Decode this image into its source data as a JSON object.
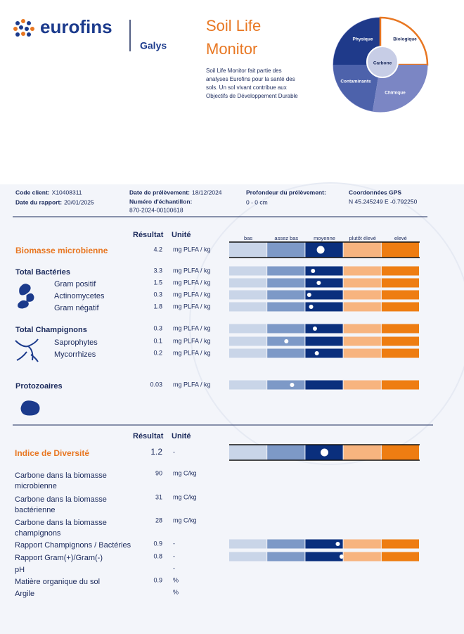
{
  "header": {
    "logo": "eurofins",
    "brand": "Galys",
    "title": [
      "Soil Life",
      "Monitor"
    ],
    "description": [
      "Soil Life Monitor fait partie des",
      "analyses Eurofins pour la santé des",
      "sols. Un sol vivant contribue aux",
      "Objectifs de Développement Durable"
    ],
    "puzzle": [
      "Physique",
      "Biologique",
      "Carbone",
      "Contaminants",
      "Chimique"
    ]
  },
  "info": [
    {
      "label": "Code client:",
      "value": "X10408311"
    },
    {
      "label": "Date du rapport:",
      "value": "20/01/2025"
    },
    {
      "label": "Date de prélèvement:",
      "value": "18/12/2024"
    },
    {
      "label": "Numéro d'échantillon:",
      "value": "870-2024-00100618"
    },
    {
      "label": "Profondeur du prélèvement:",
      "value": "0 - 0 cm"
    },
    {
      "label": "Coordonnées GPS",
      "value": "N 45.245249 E -0.792250"
    }
  ],
  "sections": [
    {
      "headers": [
        "Résultat",
        "Unité"
      ],
      "scale": [
        "bas",
        "assez bas",
        "moyenne",
        "plutôt élevé",
        "elevé"
      ],
      "rows": [
        {
          "name": [
            "Biomasse microbienne"
          ],
          "value": 4.2,
          "unit": "mg PLFA / kg",
          "gauge": 2.4
        },
        {
          "name": [
            "Total Bactéries"
          ],
          "value": 3.3,
          "unit": "mg PLFA / kg",
          "gauge": 2.2
        },
        {
          "name": [
            "Gram positif"
          ],
          "value": 1.5,
          "unit": "mg PLFA / kg",
          "gauge": 2.35
        },
        {
          "name": [
            "Actinomycetes"
          ],
          "value": 0.3,
          "unit": "mg PLFA / kg",
          "gauge": 2.1
        },
        {
          "name": [
            "Gram négatif"
          ],
          "value": 1.8,
          "unit": "mg PLFA / kg",
          "gauge": 2.15
        },
        {
          "name": [
            "Total Champignons"
          ],
          "value": 0.3,
          "unit": "mg PLFA / kg",
          "gauge": 2.25
        },
        {
          "name": [
            "Saprophytes"
          ],
          "value": 0.1,
          "unit": "mg PLFA / kg",
          "gauge": 1.5
        },
        {
          "name": [
            "Mycorrhizes"
          ],
          "value": 0.2,
          "unit": "mg PLFA / kg",
          "gauge": 2.3
        },
        {
          "name": [
            "Protozoaires"
          ],
          "value": 0.03,
          "unit": "mg PLFA / kg",
          "gauge": 1.65
        }
      ]
    },
    {
      "headers": [
        "Résultat",
        "Unité"
      ],
      "rows": [
        {
          "name": [
            "Indice de Diversité"
          ],
          "value": 1.2,
          "unit": "-",
          "gauge": 2.5
        },
        {
          "name": [
            "Carbone dans la biomasse",
            "microbienne"
          ],
          "value": 90,
          "unit": "mg C/kg"
        },
        {
          "name": [
            "Carbone dans la biomasse",
            "bactérienne"
          ],
          "value": 31,
          "unit": "mg C/kg"
        },
        {
          "name": [
            "Carbone dans la biomasse",
            "champignons"
          ],
          "value": 28,
          "unit": "mg C/kg"
        },
        {
          "name": [
            "Rapport Champignons / Bactéries"
          ],
          "value": 0.9,
          "unit": "-",
          "gauge": 2.85
        },
        {
          "name": [
            "Rapport Gram(+)/Gram(-)"
          ],
          "value": 0.8,
          "unit": "-",
          "gauge": 2.95
        },
        {
          "name": [
            "pH"
          ],
          "unit": "-"
        },
        {
          "name": [
            "Matière organique du sol"
          ],
          "value": 0.9,
          "unit": "%"
        },
        {
          "name": [
            "Argile"
          ],
          "unit": "%"
        }
      ]
    }
  ]
}
